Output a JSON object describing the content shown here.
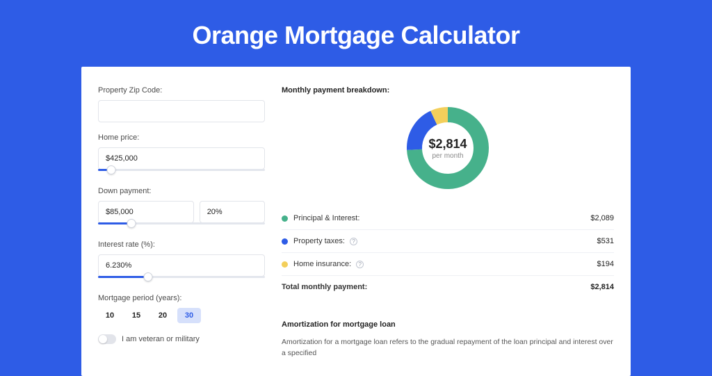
{
  "page": {
    "title": "Orange Mortgage Calculator",
    "background_color": "#2e5ce6",
    "panel_background": "#ffffff"
  },
  "form": {
    "zip": {
      "label": "Property Zip Code:",
      "value": ""
    },
    "home_price": {
      "label": "Home price:",
      "value": "$425,000",
      "slider_pct": 8
    },
    "down_payment": {
      "label": "Down payment:",
      "amount": "$85,000",
      "pct": "20%",
      "slider_pct": 20
    },
    "interest_rate": {
      "label": "Interest rate (%):",
      "value": "6.230%",
      "slider_pct": 30
    },
    "period": {
      "label": "Mortgage period (years):",
      "options": [
        "10",
        "15",
        "20",
        "30"
      ],
      "selected": "30"
    },
    "veteran": {
      "label": "I am veteran or military",
      "checked": false
    }
  },
  "breakdown": {
    "heading": "Monthly payment breakdown:",
    "donut": {
      "center_value": "$2,814",
      "center_sub": "per month",
      "slices": [
        {
          "key": "principal_interest",
          "value": 2089,
          "color": "#46b18b"
        },
        {
          "key": "property_taxes",
          "value": 531,
          "color": "#2e5ce6"
        },
        {
          "key": "home_insurance",
          "value": 194,
          "color": "#f3cf5b"
        }
      ],
      "track_color": "#eeeeee",
      "thickness": 22,
      "radius": 60
    },
    "legend": [
      {
        "label": "Principal & Interest:",
        "amount": "$2,089",
        "color": "#46b18b",
        "info": false
      },
      {
        "label": "Property taxes:",
        "amount": "$531",
        "color": "#2e5ce6",
        "info": true
      },
      {
        "label": "Home insurance:",
        "amount": "$194",
        "color": "#f3cf5b",
        "info": true
      }
    ],
    "total": {
      "label": "Total monthly payment:",
      "amount": "$2,814"
    }
  },
  "amortization": {
    "heading": "Amortization for mortgage loan",
    "text": "Amortization for a mortgage loan refers to the gradual repayment of the loan principal and interest over a specified"
  }
}
